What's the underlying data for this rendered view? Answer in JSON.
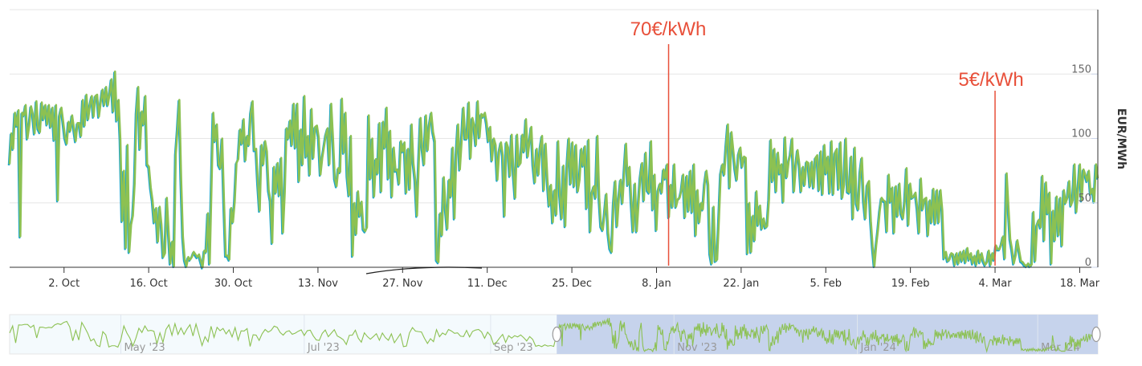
{
  "chart_data": {
    "type": "line",
    "ylabel": "EUR/MWh",
    "ylim": [
      0,
      200
    ],
    "yticks": [
      0,
      50,
      100,
      150
    ],
    "xticks": [
      "2. Oct",
      "16. Oct",
      "30. Oct",
      "13. Nov",
      "27. Nov",
      "11. Dec",
      "25. Dec",
      "8. Jan",
      "22. Jan",
      "5. Feb",
      "19. Feb",
      "4. Mar",
      "18. Mar"
    ],
    "xrange": [
      "2023-09-23",
      "2024-03-21"
    ],
    "grid": true,
    "colors": {
      "line": "#8cc152",
      "line_under": "#1fa7c9",
      "annotation": "#e8503a",
      "navigator_mask": "#c6d3ec"
    },
    "series": [
      {
        "values": [
          80,
          104,
          92,
          120,
          110,
          122,
          24,
          120,
          118,
          126,
          100,
          110,
          125,
          119,
          104,
          129,
          108,
          105,
          128,
          115,
          126,
          111,
          126,
          109,
          124,
          99,
          126,
          52,
          118,
          124,
          113,
          101,
          96,
          113,
          106,
          118,
          108,
          98,
          112,
          112,
          102,
          130,
          110,
          134,
          115,
          126,
          133,
          117,
          133,
          134,
          117,
          128,
          138,
          126,
          140,
          126,
          135,
          146,
          121,
          152,
          114,
          130,
          99,
          36,
          75,
          15,
          95,
          12,
          33,
          40,
          65,
          120,
          140,
          92,
          121,
          111,
          133,
          80,
          78,
          62,
          52,
          35,
          46,
          20,
          47,
          33,
          8,
          11,
          54,
          28,
          3,
          20,
          1,
          88,
          107,
          130,
          69,
          24,
          6,
          1,
          8,
          6,
          8,
          12,
          10,
          8,
          10,
          5,
          0,
          13,
          12,
          42,
          3,
          62,
          120,
          98,
          111,
          80,
          77,
          100,
          51,
          9,
          9,
          6,
          46,
          35,
          51,
          81,
          84,
          107,
          96,
          115,
          83,
          102,
          95,
          120,
          129,
          91,
          92,
          65,
          44,
          95,
          80,
          98,
          90,
          60,
          52,
          19,
          78,
          58,
          81,
          56,
          85,
          27,
          58,
          108,
          100,
          114,
          95,
          127,
          93,
          127,
          67,
          107,
          80,
          133,
          86,
          102,
          72,
          123,
          85,
          109,
          110,
          101,
          72,
          85,
          94,
          103,
          108,
          80,
          127,
          100,
          69,
          63,
          77,
          74,
          131,
          89,
          120,
          71,
          56,
          102,
          9,
          50,
          26,
          59,
          40,
          51,
          30,
          28,
          31,
          118,
          69,
          100,
          55,
          84,
          73,
          112,
          59,
          113,
          93,
          124,
          69,
          106,
          55,
          93,
          75,
          76,
          65,
          98,
          90,
          97,
          58,
          92,
          61,
          111,
          81,
          68,
          40,
          81,
          116,
          92,
          80,
          118,
          91,
          111,
          120,
          105,
          98,
          6,
          4,
          42,
          25,
          70,
          46,
          30,
          68,
          55,
          93,
          38,
          88,
          111,
          76,
          98,
          124,
          100,
          100,
          128,
          85,
          116,
          110,
          95,
          129,
          101,
          119,
          117,
          120,
          112,
          98,
          109,
          83,
          100,
          95,
          68,
          90,
          97,
          87,
          40,
          97,
          93,
          71,
          103,
          73,
          54,
          103,
          79,
          81,
          103,
          90,
          115,
          86,
          98,
          109,
          80,
          66,
          92,
          72,
          93,
          102,
          60,
          96,
          68,
          48,
          64,
          35,
          60,
          41,
          98,
          56,
          38,
          79,
          32,
          78,
          100,
          65,
          97,
          63,
          95,
          59,
          68,
          92,
          79,
          94,
          46,
          99,
          28,
          58,
          63,
          54,
          102,
          54,
          32,
          29,
          42,
          57,
          27,
          15,
          12,
          49,
          67,
          32,
          54,
          68,
          50,
          74,
          96,
          64,
          78,
          50,
          28,
          65,
          28,
          50,
          70,
          81,
          52,
          89,
          60,
          58,
          98,
          45,
          72,
          29,
          60,
          65,
          58,
          76,
          69,
          80,
          39,
          64,
          47,
          80,
          47,
          53,
          54,
          60,
          72,
          39,
          71,
          44,
          75,
          43,
          80,
          25,
          60,
          35,
          50,
          45,
          65,
          75,
          64,
          11,
          3,
          47,
          5,
          6,
          38,
          73,
          80,
          72,
          94,
          111,
          62,
          105,
          91,
          77,
          68,
          88,
          93,
          78,
          86,
          85,
          11,
          50,
          12,
          40,
          21,
          59,
          33,
          48,
          30,
          38,
          31,
          32,
          53,
          99,
          67,
          92,
          59,
          89,
          73,
          80,
          51,
          101,
          70,
          82,
          88,
          100,
          59,
          78,
          91,
          80,
          59,
          78,
          64,
          82,
          81,
          63,
          82,
          62,
          85,
          87,
          60,
          90,
          57,
          95,
          73,
          86,
          58,
          98,
          57,
          89,
          92,
          61,
          97,
          54,
          64,
          100,
          59,
          58,
          86,
          38,
          93,
          50,
          45,
          74,
          85,
          52,
          38,
          64,
          67,
          36,
          16,
          1,
          17,
          29,
          44,
          54,
          52,
          51,
          28,
          72,
          51,
          62,
          27,
          63,
          40,
          65,
          42,
          38,
          51,
          77,
          33,
          65,
          54,
          55,
          58,
          46,
          27,
          69,
          45,
          53,
          54,
          25,
          52,
          35,
          61,
          34,
          60,
          35,
          60,
          44,
          7,
          12,
          5,
          6,
          11,
          10,
          2,
          11,
          3,
          12,
          5,
          13,
          4,
          15,
          6,
          11,
          3,
          9,
          2,
          13,
          4,
          11,
          5,
          2,
          4,
          13,
          2,
          11,
          6,
          17,
          14,
          14,
          18,
          24,
          7,
          73,
          47,
          22,
          14,
          3,
          9,
          21,
          13,
          5,
          4,
          2,
          1,
          3,
          1,
          2,
          43,
          5,
          33,
          37,
          31,
          71,
          21,
          66,
          42,
          58,
          3,
          44,
          21,
          55,
          25,
          54,
          17,
          60,
          50,
          54,
          67,
          48,
          52,
          80,
          43,
          60,
          80,
          52,
          76,
          72,
          67,
          75,
          57,
          61,
          51,
          80,
          69
        ]
      }
    ],
    "annotations": [
      {
        "text": "70€/kWh",
        "x": "2024-01-10"
      },
      {
        "text": "5€/kWh",
        "x": "2024-03-04"
      }
    ],
    "navigator": {
      "labels": [
        "May '23",
        "Jul '23",
        "Sep '23",
        "Nov '23",
        "Jan '24",
        "Mar '24"
      ],
      "selected_range": [
        "2023-09-23",
        "2024-03-21"
      ]
    }
  }
}
